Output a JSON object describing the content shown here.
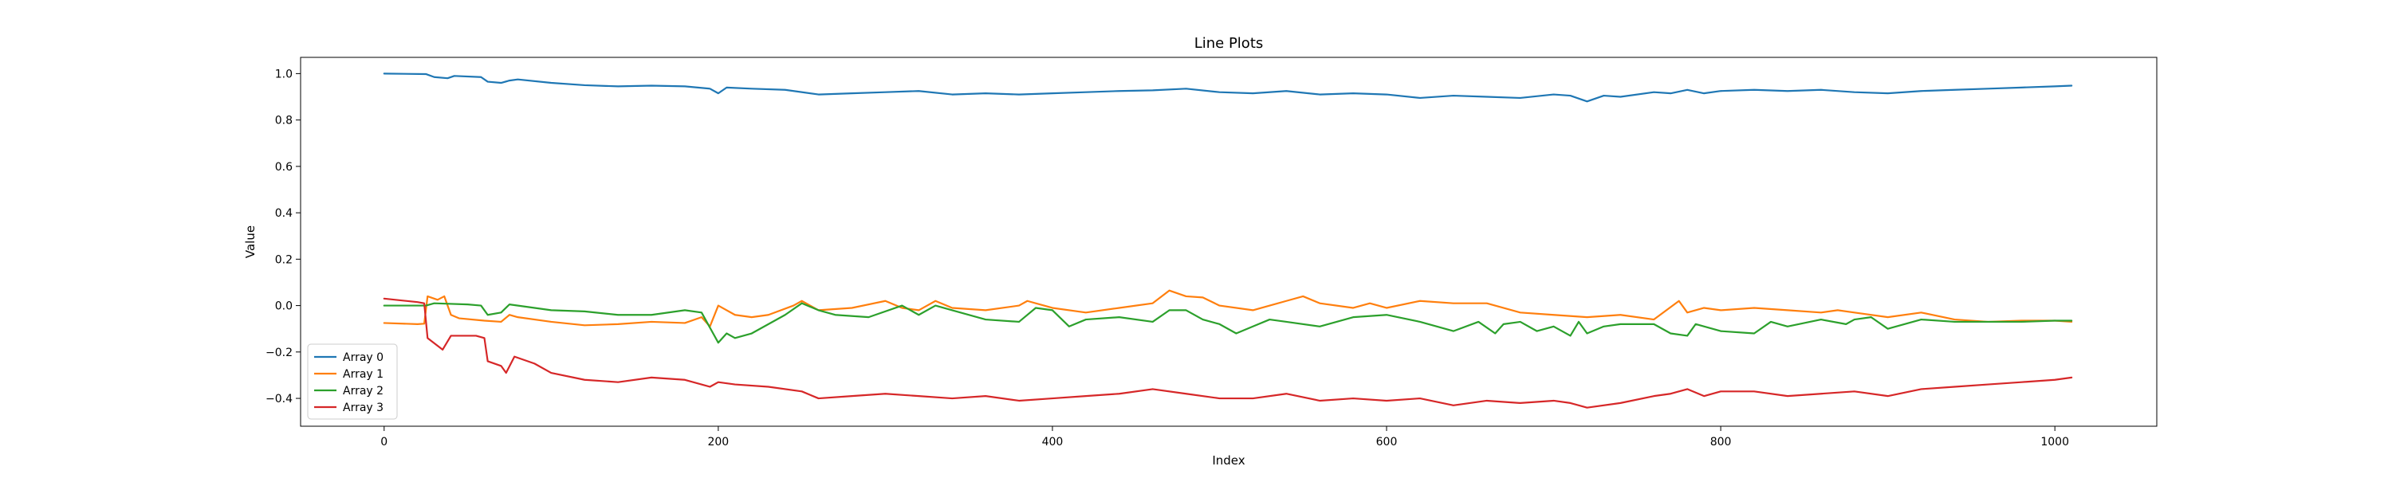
{
  "chart_data": {
    "type": "line",
    "title": "Line Plots",
    "xlabel": "Index",
    "ylabel": "Value",
    "xlim": [
      -50,
      1061
    ],
    "ylim": [
      -0.52,
      1.07
    ],
    "xticks": [
      0,
      200,
      400,
      600,
      800,
      1000
    ],
    "yticks": [
      -0.4,
      -0.2,
      0.0,
      0.2,
      0.4,
      0.6,
      0.8,
      1.0
    ],
    "xtick_labels": [
      "0",
      "200",
      "400",
      "600",
      "800",
      "1000"
    ],
    "ytick_labels": [
      "−0.4",
      "−0.2",
      "0.0",
      "0.2",
      "0.4",
      "0.6",
      "0.8",
      "1.0"
    ],
    "grid": false,
    "legend_position": "lower-left",
    "series": [
      {
        "name": "Array 0",
        "color": "#1f77b4",
        "points": [
          [
            0,
            1.0
          ],
          [
            25,
            0.998
          ],
          [
            30,
            0.985
          ],
          [
            38,
            0.98
          ],
          [
            42,
            0.99
          ],
          [
            58,
            0.985
          ],
          [
            62,
            0.965
          ],
          [
            70,
            0.96
          ],
          [
            75,
            0.97
          ],
          [
            80,
            0.975
          ],
          [
            100,
            0.96
          ],
          [
            120,
            0.95
          ],
          [
            140,
            0.945
          ],
          [
            160,
            0.948
          ],
          [
            180,
            0.945
          ],
          [
            195,
            0.935
          ],
          [
            200,
            0.915
          ],
          [
            205,
            0.94
          ],
          [
            220,
            0.935
          ],
          [
            240,
            0.93
          ],
          [
            260,
            0.91
          ],
          [
            280,
            0.915
          ],
          [
            300,
            0.92
          ],
          [
            320,
            0.925
          ],
          [
            340,
            0.91
          ],
          [
            360,
            0.915
          ],
          [
            380,
            0.91
          ],
          [
            400,
            0.915
          ],
          [
            420,
            0.92
          ],
          [
            440,
            0.925
          ],
          [
            460,
            0.928
          ],
          [
            480,
            0.935
          ],
          [
            500,
            0.92
          ],
          [
            520,
            0.915
          ],
          [
            540,
            0.925
          ],
          [
            560,
            0.91
          ],
          [
            580,
            0.915
          ],
          [
            600,
            0.91
          ],
          [
            620,
            0.895
          ],
          [
            640,
            0.905
          ],
          [
            660,
            0.9
          ],
          [
            680,
            0.895
          ],
          [
            700,
            0.91
          ],
          [
            710,
            0.905
          ],
          [
            720,
            0.88
          ],
          [
            730,
            0.905
          ],
          [
            740,
            0.9
          ],
          [
            760,
            0.92
          ],
          [
            770,
            0.915
          ],
          [
            780,
            0.93
          ],
          [
            790,
            0.915
          ],
          [
            800,
            0.925
          ],
          [
            820,
            0.93
          ],
          [
            840,
            0.925
          ],
          [
            860,
            0.93
          ],
          [
            880,
            0.92
          ],
          [
            900,
            0.915
          ],
          [
            920,
            0.925
          ],
          [
            940,
            0.93
          ],
          [
            960,
            0.935
          ],
          [
            980,
            0.94
          ],
          [
            1000,
            0.945
          ],
          [
            1010,
            0.948
          ]
        ]
      },
      {
        "name": "Array 1",
        "color": "#ff7f0e",
        "points": [
          [
            0,
            -0.075
          ],
          [
            20,
            -0.08
          ],
          [
            24,
            -0.078
          ],
          [
            26,
            0.04
          ],
          [
            32,
            0.025
          ],
          [
            36,
            0.04
          ],
          [
            40,
            -0.04
          ],
          [
            45,
            -0.055
          ],
          [
            60,
            -0.065
          ],
          [
            70,
            -0.07
          ],
          [
            75,
            -0.04
          ],
          [
            80,
            -0.05
          ],
          [
            100,
            -0.07
          ],
          [
            120,
            -0.085
          ],
          [
            140,
            -0.08
          ],
          [
            160,
            -0.07
          ],
          [
            180,
            -0.075
          ],
          [
            190,
            -0.05
          ],
          [
            195,
            -0.09
          ],
          [
            200,
            0.0
          ],
          [
            210,
            -0.04
          ],
          [
            220,
            -0.05
          ],
          [
            230,
            -0.04
          ],
          [
            245,
            0.0
          ],
          [
            250,
            0.02
          ],
          [
            260,
            -0.02
          ],
          [
            280,
            -0.01
          ],
          [
            300,
            0.02
          ],
          [
            310,
            -0.01
          ],
          [
            320,
            -0.02
          ],
          [
            330,
            0.02
          ],
          [
            340,
            -0.01
          ],
          [
            360,
            -0.02
          ],
          [
            380,
            0.0
          ],
          [
            385,
            0.02
          ],
          [
            400,
            -0.01
          ],
          [
            420,
            -0.03
          ],
          [
            440,
            -0.01
          ],
          [
            460,
            0.01
          ],
          [
            470,
            0.065
          ],
          [
            480,
            0.04
          ],
          [
            490,
            0.035
          ],
          [
            500,
            0.0
          ],
          [
            520,
            -0.02
          ],
          [
            540,
            0.02
          ],
          [
            550,
            0.04
          ],
          [
            560,
            0.01
          ],
          [
            580,
            -0.01
          ],
          [
            590,
            0.01
          ],
          [
            600,
            -0.01
          ],
          [
            620,
            0.02
          ],
          [
            640,
            0.01
          ],
          [
            660,
            0.01
          ],
          [
            680,
            -0.03
          ],
          [
            700,
            -0.04
          ],
          [
            720,
            -0.05
          ],
          [
            740,
            -0.04
          ],
          [
            760,
            -0.06
          ],
          [
            775,
            0.02
          ],
          [
            780,
            -0.03
          ],
          [
            790,
            -0.01
          ],
          [
            800,
            -0.02
          ],
          [
            820,
            -0.01
          ],
          [
            840,
            -0.02
          ],
          [
            860,
            -0.03
          ],
          [
            870,
            -0.02
          ],
          [
            880,
            -0.03
          ],
          [
            900,
            -0.05
          ],
          [
            920,
            -0.03
          ],
          [
            940,
            -0.06
          ],
          [
            960,
            -0.07
          ],
          [
            980,
            -0.065
          ],
          [
            1000,
            -0.065
          ],
          [
            1010,
            -0.07
          ]
        ]
      },
      {
        "name": "Array 2",
        "color": "#2ca02c",
        "points": [
          [
            0,
            0.0
          ],
          [
            20,
            0.0
          ],
          [
            25,
            0.0
          ],
          [
            30,
            0.01
          ],
          [
            50,
            0.005
          ],
          [
            58,
            0.0
          ],
          [
            62,
            -0.04
          ],
          [
            70,
            -0.03
          ],
          [
            75,
            0.005
          ],
          [
            100,
            -0.02
          ],
          [
            120,
            -0.025
          ],
          [
            140,
            -0.04
          ],
          [
            160,
            -0.04
          ],
          [
            180,
            -0.02
          ],
          [
            190,
            -0.03
          ],
          [
            200,
            -0.16
          ],
          [
            205,
            -0.12
          ],
          [
            210,
            -0.14
          ],
          [
            220,
            -0.12
          ],
          [
            230,
            -0.08
          ],
          [
            240,
            -0.04
          ],
          [
            250,
            0.01
          ],
          [
            260,
            -0.02
          ],
          [
            270,
            -0.04
          ],
          [
            290,
            -0.05
          ],
          [
            310,
            0.0
          ],
          [
            320,
            -0.04
          ],
          [
            330,
            0.0
          ],
          [
            340,
            -0.02
          ],
          [
            360,
            -0.06
          ],
          [
            380,
            -0.07
          ],
          [
            390,
            -0.01
          ],
          [
            400,
            -0.02
          ],
          [
            410,
            -0.09
          ],
          [
            420,
            -0.06
          ],
          [
            440,
            -0.05
          ],
          [
            460,
            -0.07
          ],
          [
            470,
            -0.02
          ],
          [
            480,
            -0.02
          ],
          [
            490,
            -0.06
          ],
          [
            500,
            -0.08
          ],
          [
            510,
            -0.12
          ],
          [
            520,
            -0.09
          ],
          [
            530,
            -0.06
          ],
          [
            540,
            -0.07
          ],
          [
            560,
            -0.09
          ],
          [
            580,
            -0.05
          ],
          [
            600,
            -0.04
          ],
          [
            620,
            -0.07
          ],
          [
            640,
            -0.11
          ],
          [
            655,
            -0.07
          ],
          [
            665,
            -0.12
          ],
          [
            670,
            -0.08
          ],
          [
            680,
            -0.07
          ],
          [
            690,
            -0.11
          ],
          [
            700,
            -0.09
          ],
          [
            710,
            -0.13
          ],
          [
            715,
            -0.07
          ],
          [
            720,
            -0.12
          ],
          [
            730,
            -0.09
          ],
          [
            740,
            -0.08
          ],
          [
            760,
            -0.08
          ],
          [
            770,
            -0.12
          ],
          [
            780,
            -0.13
          ],
          [
            785,
            -0.08
          ],
          [
            800,
            -0.11
          ],
          [
            820,
            -0.12
          ],
          [
            830,
            -0.07
          ],
          [
            840,
            -0.09
          ],
          [
            860,
            -0.06
          ],
          [
            875,
            -0.08
          ],
          [
            880,
            -0.06
          ],
          [
            890,
            -0.05
          ],
          [
            900,
            -0.1
          ],
          [
            920,
            -0.06
          ],
          [
            940,
            -0.07
          ],
          [
            960,
            -0.07
          ],
          [
            980,
            -0.07
          ],
          [
            1000,
            -0.065
          ],
          [
            1010,
            -0.065
          ]
        ]
      },
      {
        "name": "Array 3",
        "color": "#d62728",
        "points": [
          [
            0,
            0.03
          ],
          [
            20,
            0.015
          ],
          [
            24,
            0.01
          ],
          [
            26,
            -0.14
          ],
          [
            35,
            -0.19
          ],
          [
            40,
            -0.13
          ],
          [
            55,
            -0.13
          ],
          [
            60,
            -0.14
          ],
          [
            62,
            -0.24
          ],
          [
            70,
            -0.26
          ],
          [
            73,
            -0.29
          ],
          [
            78,
            -0.22
          ],
          [
            90,
            -0.25
          ],
          [
            100,
            -0.29
          ],
          [
            120,
            -0.32
          ],
          [
            140,
            -0.33
          ],
          [
            160,
            -0.31
          ],
          [
            180,
            -0.32
          ],
          [
            195,
            -0.35
          ],
          [
            200,
            -0.33
          ],
          [
            210,
            -0.34
          ],
          [
            230,
            -0.35
          ],
          [
            250,
            -0.37
          ],
          [
            260,
            -0.4
          ],
          [
            280,
            -0.39
          ],
          [
            300,
            -0.38
          ],
          [
            320,
            -0.39
          ],
          [
            340,
            -0.4
          ],
          [
            360,
            -0.39
          ],
          [
            380,
            -0.41
          ],
          [
            400,
            -0.4
          ],
          [
            420,
            -0.39
          ],
          [
            440,
            -0.38
          ],
          [
            460,
            -0.36
          ],
          [
            480,
            -0.38
          ],
          [
            500,
            -0.4
          ],
          [
            520,
            -0.4
          ],
          [
            540,
            -0.38
          ],
          [
            560,
            -0.41
          ],
          [
            580,
            -0.4
          ],
          [
            600,
            -0.41
          ],
          [
            620,
            -0.4
          ],
          [
            640,
            -0.43
          ],
          [
            660,
            -0.41
          ],
          [
            680,
            -0.42
          ],
          [
            700,
            -0.41
          ],
          [
            710,
            -0.42
          ],
          [
            720,
            -0.44
          ],
          [
            740,
            -0.42
          ],
          [
            760,
            -0.39
          ],
          [
            770,
            -0.38
          ],
          [
            780,
            -0.36
          ],
          [
            790,
            -0.39
          ],
          [
            800,
            -0.37
          ],
          [
            820,
            -0.37
          ],
          [
            840,
            -0.39
          ],
          [
            860,
            -0.38
          ],
          [
            880,
            -0.37
          ],
          [
            900,
            -0.39
          ],
          [
            920,
            -0.36
          ],
          [
            940,
            -0.35
          ],
          [
            960,
            -0.34
          ],
          [
            980,
            -0.33
          ],
          [
            1000,
            -0.32
          ],
          [
            1010,
            -0.31
          ]
        ]
      }
    ]
  }
}
